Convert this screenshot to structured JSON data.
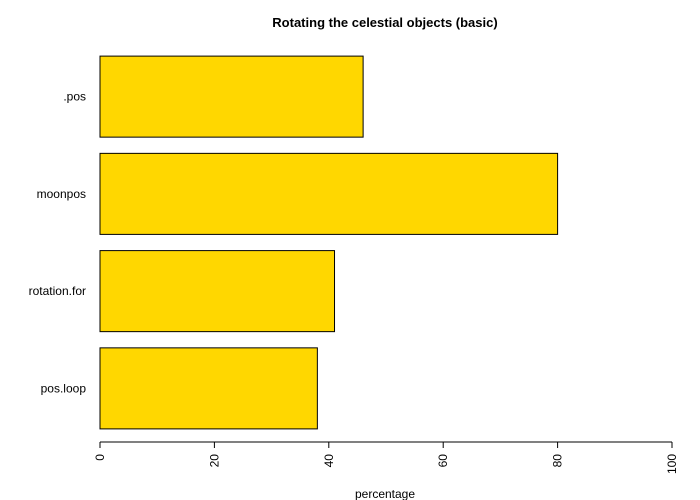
{
  "chart_data": {
    "type": "bar",
    "orientation": "horizontal",
    "title": "Rotating the celestial objects (basic)",
    "xlabel": "percentage",
    "ylabel": "",
    "categories": [
      ".pos",
      "moonpos",
      "rotation.for",
      "pos.loop"
    ],
    "values": [
      46,
      80,
      41,
      38
    ],
    "xlim": [
      0,
      100
    ],
    "xticks": [
      0,
      20,
      40,
      60,
      80,
      100
    ],
    "bar_color": "#FFD700",
    "bar_border_color": "#000000",
    "grid": false,
    "legend": "none"
  }
}
